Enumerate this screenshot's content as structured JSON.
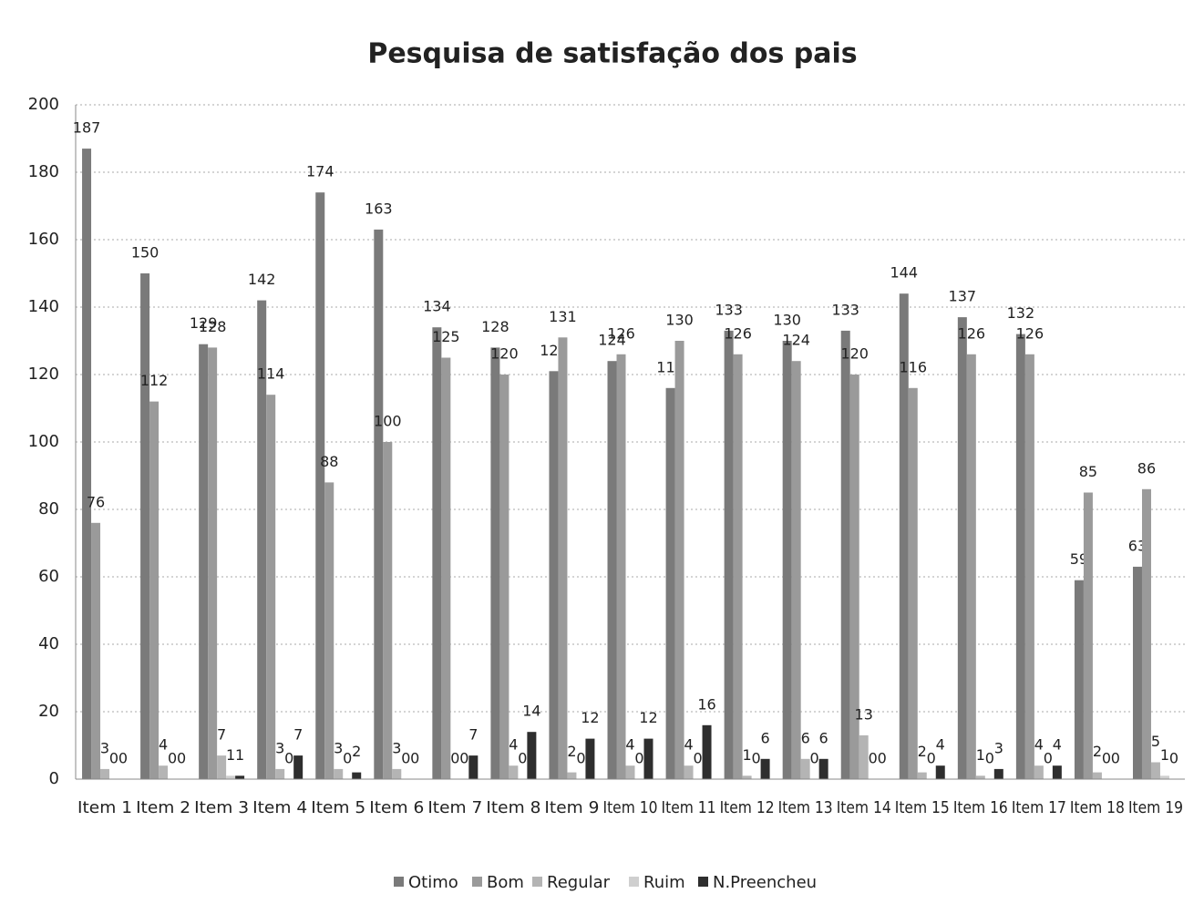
{
  "chart_data": {
    "type": "bar",
    "title": "Pesquisa de satisfação dos pais",
    "categories": [
      "Item 1",
      "Item 2",
      "Item 3",
      "Item 4",
      "Item 5",
      "Item 6",
      "Item 7",
      "Item 8",
      "Item 9",
      "Item 10",
      "Item 11",
      "Item 12",
      "Item 13",
      "Item 14",
      "Item 15",
      "Item 16",
      "Item 17",
      "Item 18",
      "Item 19"
    ],
    "series": [
      {
        "name": "Otimo",
        "color": "#7a7a7a",
        "values": [
          187,
          150,
          129,
          142,
          174,
          163,
          134,
          128,
          121,
          124,
          116,
          133,
          130,
          133,
          144,
          137,
          132,
          59,
          63
        ]
      },
      {
        "name": "Bom",
        "color": "#9a9a9a",
        "values": [
          76,
          112,
          128,
          114,
          88,
          100,
          125,
          120,
          131,
          126,
          130,
          126,
          124,
          120,
          116,
          126,
          126,
          85,
          86
        ]
      },
      {
        "name": "Regular",
        "color": "#b4b4b4",
        "values": [
          3,
          4,
          7,
          3,
          3,
          3,
          0,
          4,
          2,
          4,
          4,
          1,
          6,
          13,
          2,
          1,
          4,
          2,
          5
        ]
      },
      {
        "name": "Ruim",
        "color": "#cfcfcf",
        "values": [
          0,
          0,
          1,
          0,
          0,
          0,
          0,
          0,
          0,
          0,
          0,
          0,
          0,
          0,
          0,
          0,
          0,
          0,
          1
        ]
      },
      {
        "name": "N.Preencheu",
        "color": "#2e2e2e",
        "values": [
          0,
          0,
          1,
          7,
          2,
          0,
          7,
          14,
          12,
          12,
          16,
          6,
          6,
          0,
          4,
          3,
          4,
          0,
          0
        ]
      }
    ],
    "ylim": [
      0,
      200
    ],
    "yticks": [
      0,
      20,
      40,
      60,
      80,
      100,
      120,
      140,
      160,
      180,
      200
    ],
    "grid": true,
    "legend": "bottom"
  }
}
